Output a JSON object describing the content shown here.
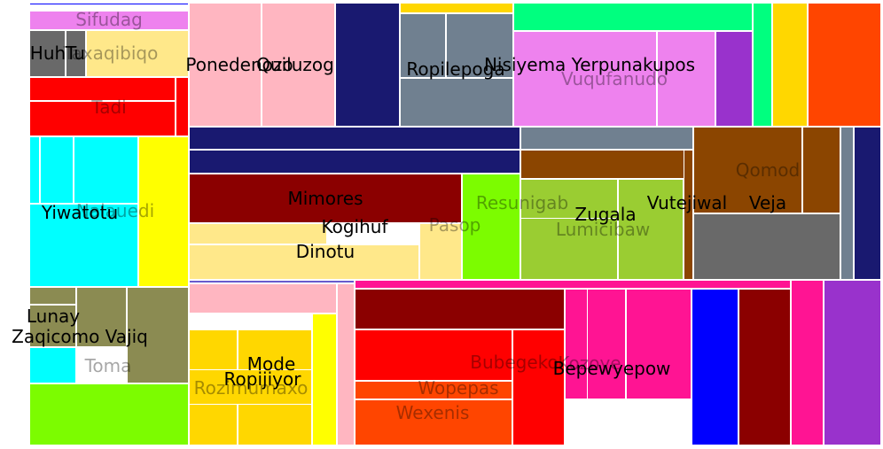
{
  "chart_data": {
    "type": "treemap",
    "title": "",
    "cells": [
      {
        "label": "",
        "color": "#0000ff",
        "size": 1
      },
      {
        "label": "Sifudag",
        "color": "#ee82ee",
        "size": 4,
        "label_style": "faint"
      },
      {
        "label": "Huh",
        "color": "#696969",
        "size": 2,
        "label_style": "dark"
      },
      {
        "label": "Tu",
        "color": "#696969",
        "size": 1,
        "label_style": "dark"
      },
      {
        "label": "Taxaqibiqo",
        "color": "#ffe88a",
        "size": 5,
        "label_style": "faint"
      },
      {
        "label": "",
        "color": "#ff0000",
        "size": 3
      },
      {
        "label": "Tadi",
        "color": "#ff0000",
        "size": 6,
        "label_style": "faint"
      },
      {
        "label": "",
        "color": "#ff0000",
        "size": 1
      },
      {
        "label": "",
        "color": "#00ffff",
        "size": 2
      },
      {
        "label": "",
        "color": "#00ffff",
        "size": 2
      },
      {
        "label": "",
        "color": "#00ffff",
        "size": 5
      },
      {
        "label": "Yiwatotu",
        "color": "#00ffff",
        "size": 14,
        "label_style": "dark"
      },
      {
        "label": "Nalauedi",
        "color": "#ffff00",
        "size": 10,
        "label_style": "faint"
      },
      {
        "label": "Lunay",
        "color": "#8b8b52",
        "size": 2,
        "label_style": "dark"
      },
      {
        "label": "Zaqicomo Vajiq",
        "color": "#8b8b52",
        "size": 3,
        "label_style": "dark"
      },
      {
        "label": "",
        "color": "#8b8b52",
        "size": 3
      },
      {
        "label": "Toma",
        "color": "#8b8b52",
        "size": 5,
        "label_style": "faint"
      },
      {
        "label": "",
        "color": "#00ffff",
        "size": 2
      },
      {
        "label": "",
        "color": "#7cfc00",
        "size": 8
      },
      {
        "label": "Ponedenozo",
        "color": "#ffb6c1",
        "size": 9,
        "label_style": "dark"
      },
      {
        "label": "Quiluzog",
        "color": "#ffb6c1",
        "size": 9,
        "label_style": "dark"
      },
      {
        "label": "",
        "color": "#191970",
        "size": 8
      },
      {
        "label": "",
        "color": "#ffd700",
        "size": 2
      },
      {
        "label": "",
        "color": "#708090",
        "size": 2
      },
      {
        "label": "Ropilepoga",
        "color": "#708090",
        "size": 6,
        "label_style": "dark"
      },
      {
        "label": "",
        "color": "#708090",
        "size": 7
      },
      {
        "label": "",
        "color": "#00ff7f",
        "size": 4
      },
      {
        "label": "Nisiyema Yerpunakupos",
        "color": "#ee82ee",
        "size": 9,
        "label_style": "dark"
      },
      {
        "label": "Vuqufanudo",
        "color": "#ee82ee",
        "size": 5,
        "label_style": "faint"
      },
      {
        "label": "",
        "color": "#9932cc",
        "size": 4
      },
      {
        "label": "",
        "color": "#00ff7f",
        "size": 3
      },
      {
        "label": "",
        "color": "#ffd700",
        "size": 5
      },
      {
        "label": "",
        "color": "#ff4500",
        "size": 9
      },
      {
        "label": "",
        "color": "#191970",
        "size": 5
      },
      {
        "label": "",
        "color": "#191970",
        "size": 5
      },
      {
        "label": "",
        "color": "#708090",
        "size": 4
      },
      {
        "label": "Mimores",
        "color": "#8b0000",
        "size": 10,
        "label_style": "dark"
      },
      {
        "label": "Kogihuf",
        "color": "#ffe88a",
        "size": 6,
        "label_style": "dark"
      },
      {
        "label": "Dinotu",
        "color": "#ffe88a",
        "size": 8,
        "label_style": "dark"
      },
      {
        "label": "Pasop",
        "color": "#ffe88a",
        "size": 3,
        "label_style": "faint"
      },
      {
        "label": "Resunigab",
        "color": "#7cfc00",
        "size": 6,
        "label_style": "faint"
      },
      {
        "label": "",
        "color": "#8b4500",
        "size": 4
      },
      {
        "label": "Zugala",
        "color": "#9acd32",
        "size": 10,
        "label_style": "dark"
      },
      {
        "label": "Lumicibaw",
        "color": "#9acd32",
        "size": 5,
        "label_style": "faint"
      },
      {
        "label": "Vutejiwal",
        "color": "#9acd32",
        "size": 6,
        "label_style": "dark"
      },
      {
        "label": "",
        "color": "#8b4500",
        "size": 1
      },
      {
        "label": "Qomod",
        "color": "#8b4500",
        "size": 5,
        "label_style": "faint"
      },
      {
        "label": "Veja",
        "color": "#8b4500",
        "size": 2,
        "label_style": "dark"
      },
      {
        "label": "",
        "color": "#696969",
        "size": 8
      },
      {
        "label": "",
        "color": "#708090",
        "size": 1
      },
      {
        "label": "",
        "color": "#191970",
        "size": 3
      },
      {
        "label": "",
        "color": "#6a5acd",
        "size": 1
      },
      {
        "label": "",
        "color": "#ffb6c1",
        "size": 4
      },
      {
        "label": "Mode",
        "color": "#ffd700",
        "size": 5,
        "label_style": "dark"
      },
      {
        "label": "Ropijiyor",
        "color": "#ffd700",
        "size": 7,
        "label_style": "dark"
      },
      {
        "label": "Rozimumaxo",
        "color": "#ffd700",
        "size": 3,
        "label_style": "faint"
      },
      {
        "label": "",
        "color": "#ffff00",
        "size": 2
      },
      {
        "label": "",
        "color": "#ffb6c1",
        "size": 2
      },
      {
        "label": "",
        "color": "#ff1493",
        "size": 1
      },
      {
        "label": "",
        "color": "#8b0000",
        "size": 7
      },
      {
        "label": "Bubegeko",
        "color": "#ff0000",
        "size": 10,
        "label_style": "faint"
      },
      {
        "label": "Wopepas",
        "color": "#ff4500",
        "size": 3,
        "label_style": "faint"
      },
      {
        "label": "Wexenis",
        "color": "#ff4500",
        "size": 6,
        "label_style": "faint"
      },
      {
        "label": "",
        "color": "#ff0000",
        "size": 4
      },
      {
        "label": "Bepewyepow",
        "color": "#ff1493",
        "size": 6,
        "label_style": "dark"
      },
      {
        "label": "Kozoye",
        "color": "#ff1493",
        "size": 4,
        "label_style": "faint"
      },
      {
        "label": "",
        "color": "#ff1493",
        "size": 3
      },
      {
        "label": "",
        "color": "#0000ff",
        "size": 5
      },
      {
        "label": "",
        "color": "#8b0000",
        "size": 5
      },
      {
        "label": "",
        "color": "#ff1493",
        "size": 3
      },
      {
        "label": "",
        "color": "#9932cc",
        "size": 6
      }
    ]
  }
}
